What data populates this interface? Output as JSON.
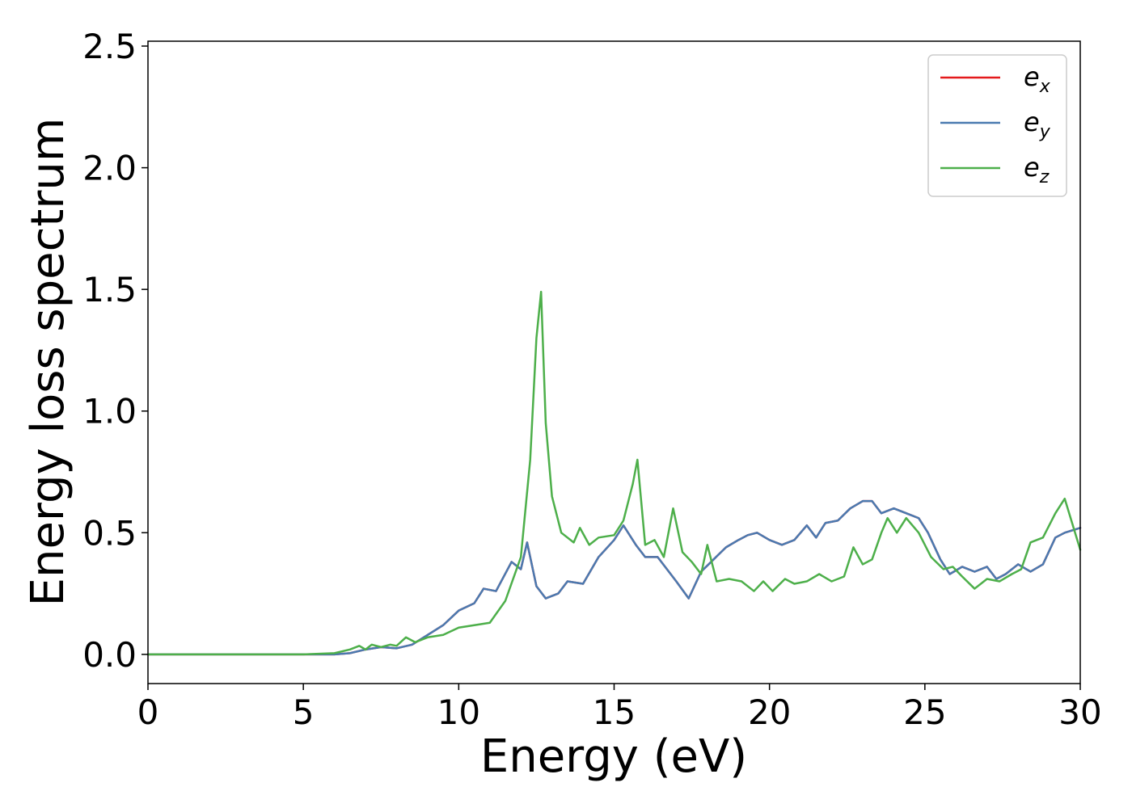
{
  "chart_data": {
    "type": "line",
    "title": "",
    "xlabel": "Energy (eV)",
    "ylabel": "Energy loss spectrum",
    "xlim": [
      0,
      30
    ],
    "ylim": [
      -0.12,
      2.52
    ],
    "xticks": [
      "0",
      "5",
      "10",
      "15",
      "20",
      "25",
      "30"
    ],
    "yticks": [
      "0.0",
      "0.5",
      "1.0",
      "1.5",
      "2.0",
      "2.5"
    ],
    "grid": false,
    "legend_position": "top-right",
    "series": [
      {
        "name": "e_x",
        "label_base": "e",
        "label_sub": "x",
        "color": "#e41a1c",
        "x": [
          0,
          5,
          6,
          6.5,
          7,
          7.5,
          8,
          8.5,
          9,
          9.5,
          10,
          10.5,
          10.8,
          11.2,
          11.7,
          12.0,
          12.2,
          12.5,
          12.8,
          13.2,
          13.5,
          14.0,
          14.5,
          15.0,
          15.3,
          15.7,
          16.0,
          16.4,
          17.0,
          17.4,
          17.8,
          18.2,
          18.6,
          19.0,
          19.3,
          19.6,
          20.0,
          20.4,
          20.8,
          21.2,
          21.5,
          21.8,
          22.2,
          22.6,
          23.0,
          23.3,
          23.6,
          24.0,
          24.4,
          24.8,
          25.1,
          25.5,
          25.8,
          26.2,
          26.6,
          27.0,
          27.3,
          27.6,
          28.0,
          28.4,
          28.8,
          29.2,
          29.5,
          30.0
        ],
        "y": [
          0.0,
          0.0,
          0.0,
          0.005,
          0.02,
          0.03,
          0.025,
          0.04,
          0.08,
          0.12,
          0.18,
          0.21,
          0.27,
          0.26,
          0.38,
          0.35,
          0.46,
          0.28,
          0.23,
          0.25,
          0.3,
          0.29,
          0.4,
          0.47,
          0.53,
          0.45,
          0.4,
          0.4,
          0.3,
          0.23,
          0.34,
          0.39,
          0.44,
          0.47,
          0.49,
          0.5,
          0.47,
          0.45,
          0.47,
          0.53,
          0.48,
          0.54,
          0.55,
          0.6,
          0.63,
          0.63,
          0.58,
          0.6,
          0.58,
          0.56,
          0.5,
          0.39,
          0.33,
          0.36,
          0.34,
          0.36,
          0.31,
          0.33,
          0.37,
          0.34,
          0.37,
          0.48,
          0.5,
          0.52
        ]
      },
      {
        "name": "e_y",
        "label_base": "e",
        "label_sub": "y",
        "color": "#4a7ab0",
        "x": [
          0,
          5,
          6,
          6.5,
          7,
          7.5,
          8,
          8.5,
          9,
          9.5,
          10,
          10.5,
          10.8,
          11.2,
          11.7,
          12.0,
          12.2,
          12.5,
          12.8,
          13.2,
          13.5,
          14.0,
          14.5,
          15.0,
          15.3,
          15.7,
          16.0,
          16.4,
          17.0,
          17.4,
          17.8,
          18.2,
          18.6,
          19.0,
          19.3,
          19.6,
          20.0,
          20.4,
          20.8,
          21.2,
          21.5,
          21.8,
          22.2,
          22.6,
          23.0,
          23.3,
          23.6,
          24.0,
          24.4,
          24.8,
          25.1,
          25.5,
          25.8,
          26.2,
          26.6,
          27.0,
          27.3,
          27.6,
          28.0,
          28.4,
          28.8,
          29.2,
          29.5,
          30.0
        ],
        "y": [
          0.0,
          0.0,
          0.0,
          0.005,
          0.02,
          0.03,
          0.025,
          0.04,
          0.08,
          0.12,
          0.18,
          0.21,
          0.27,
          0.26,
          0.38,
          0.35,
          0.46,
          0.28,
          0.23,
          0.25,
          0.3,
          0.29,
          0.4,
          0.47,
          0.53,
          0.45,
          0.4,
          0.4,
          0.3,
          0.23,
          0.34,
          0.39,
          0.44,
          0.47,
          0.49,
          0.5,
          0.47,
          0.45,
          0.47,
          0.53,
          0.48,
          0.54,
          0.55,
          0.6,
          0.63,
          0.63,
          0.58,
          0.6,
          0.58,
          0.56,
          0.5,
          0.39,
          0.33,
          0.36,
          0.34,
          0.36,
          0.31,
          0.33,
          0.37,
          0.34,
          0.37,
          0.48,
          0.5,
          0.52
        ]
      },
      {
        "name": "e_z",
        "label_base": "e",
        "label_sub": "z",
        "color": "#4daf4a",
        "x": [
          0,
          5,
          6,
          6.5,
          6.8,
          7.0,
          7.2,
          7.5,
          7.8,
          8.0,
          8.3,
          8.6,
          9.0,
          9.5,
          10.0,
          10.5,
          11.0,
          11.5,
          12.0,
          12.3,
          12.5,
          12.65,
          12.8,
          13.0,
          13.3,
          13.7,
          13.9,
          14.2,
          14.5,
          15.0,
          15.3,
          15.6,
          15.75,
          16.0,
          16.3,
          16.6,
          16.9,
          17.2,
          17.5,
          17.8,
          18.0,
          18.3,
          18.7,
          19.1,
          19.5,
          19.8,
          20.1,
          20.5,
          20.8,
          21.2,
          21.6,
          22.0,
          22.4,
          22.7,
          23.0,
          23.3,
          23.6,
          23.8,
          24.1,
          24.4,
          24.8,
          25.2,
          25.6,
          25.9,
          26.2,
          26.6,
          27.0,
          27.4,
          27.8,
          28.1,
          28.4,
          28.8,
          29.2,
          29.5,
          30.0
        ],
        "y": [
          0.0,
          0.0,
          0.005,
          0.02,
          0.035,
          0.02,
          0.04,
          0.03,
          0.04,
          0.035,
          0.07,
          0.05,
          0.07,
          0.08,
          0.11,
          0.12,
          0.13,
          0.22,
          0.4,
          0.8,
          1.3,
          1.49,
          0.95,
          0.65,
          0.5,
          0.46,
          0.52,
          0.45,
          0.48,
          0.49,
          0.55,
          0.7,
          0.8,
          0.45,
          0.47,
          0.4,
          0.6,
          0.42,
          0.38,
          0.33,
          0.45,
          0.3,
          0.31,
          0.3,
          0.26,
          0.3,
          0.26,
          0.31,
          0.29,
          0.3,
          0.33,
          0.3,
          0.32,
          0.44,
          0.37,
          0.39,
          0.5,
          0.56,
          0.5,
          0.56,
          0.5,
          0.4,
          0.35,
          0.36,
          0.32,
          0.27,
          0.31,
          0.3,
          0.33,
          0.35,
          0.46,
          0.48,
          0.58,
          0.64,
          0.43
        ]
      }
    ]
  }
}
